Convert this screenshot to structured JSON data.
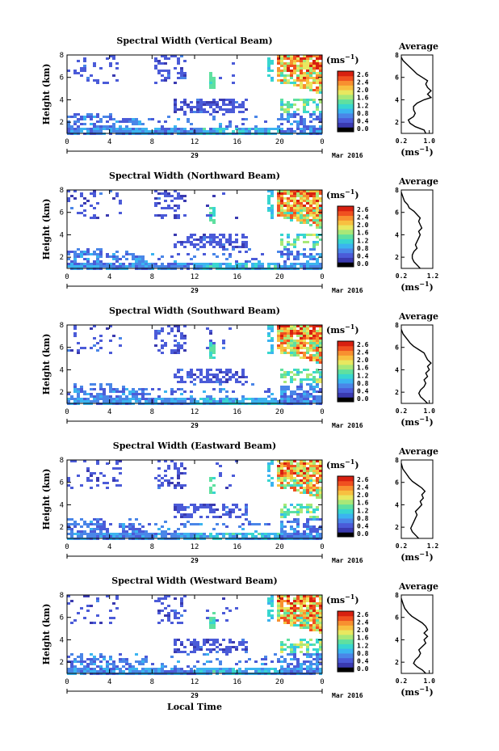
{
  "figure": {
    "xlabel": "Local Time",
    "day_label": "29",
    "month_label": "Mar 2016",
    "unit_label": "(ms",
    "unit_exp": "−1",
    "unit_close": ")",
    "avg_title": "Average"
  },
  "chart_data": [
    {
      "type": "heatmap",
      "title": "Spectral Width (Vertical Beam)",
      "ylabel": "Height (km)",
      "xlim": [
        0,
        24
      ],
      "ylim": [
        1,
        8
      ],
      "x_ticks": [
        "0",
        "4",
        "8",
        "12",
        "16",
        "20",
        "0"
      ],
      "y_ticks": [
        "2",
        "4",
        "6",
        "8"
      ],
      "colorbar": {
        "ticks": [
          "2.6",
          "2.4",
          "2.0",
          "1.6",
          "1.2",
          "0.8",
          "0.4",
          "0.0"
        ],
        "range": [
          0.0,
          2.8
        ]
      },
      "avg_profile": {
        "xlim": [
          0.2,
          1.1
        ],
        "x_ticks": [
          "0.2",
          "1.0"
        ],
        "y_ticks": [
          "2",
          "4",
          "6",
          "8"
        ],
        "points": [
          [
            0.9,
            1.0
          ],
          [
            0.85,
            1.3
          ],
          [
            0.6,
            1.6
          ],
          [
            0.45,
            1.9
          ],
          [
            0.4,
            2.2
          ],
          [
            0.55,
            2.5
          ],
          [
            0.6,
            2.8
          ],
          [
            0.55,
            3.1
          ],
          [
            0.55,
            3.4
          ],
          [
            0.65,
            3.7
          ],
          [
            0.85,
            4.0
          ],
          [
            1.05,
            4.2
          ],
          [
            0.95,
            4.5
          ],
          [
            1.05,
            4.8
          ],
          [
            0.95,
            5.1
          ],
          [
            0.9,
            5.4
          ],
          [
            0.95,
            5.7
          ],
          [
            0.8,
            6.0
          ],
          [
            0.65,
            6.3
          ],
          [
            0.55,
            6.6
          ],
          [
            0.45,
            6.9
          ],
          [
            0.35,
            7.2
          ],
          [
            0.25,
            7.5
          ],
          [
            0.2,
            7.8
          ]
        ]
      }
    },
    {
      "type": "heatmap",
      "title": "Spectral Width (Northward Beam)",
      "ylabel": "Height (km)",
      "xlim": [
        0,
        24
      ],
      "ylim": [
        1,
        8
      ],
      "x_ticks": [
        "0",
        "4",
        "8",
        "12",
        "16",
        "20",
        "0"
      ],
      "y_ticks": [
        "2",
        "4",
        "6",
        "8"
      ],
      "colorbar": {
        "ticks": [
          "2.6",
          "2.4",
          "2.0",
          "1.6",
          "1.2",
          "0.8",
          "0.4",
          "0.0"
        ],
        "range": [
          0.0,
          2.8
        ]
      },
      "avg_profile": {
        "xlim": [
          0.2,
          1.2
        ],
        "x_ticks": [
          "0.2",
          "1.2"
        ],
        "y_ticks": [
          "2",
          "4",
          "6",
          "8"
        ],
        "points": [
          [
            0.8,
            1.0
          ],
          [
            0.7,
            1.3
          ],
          [
            0.6,
            1.6
          ],
          [
            0.55,
            1.9
          ],
          [
            0.55,
            2.2
          ],
          [
            0.6,
            2.5
          ],
          [
            0.7,
            2.8
          ],
          [
            0.65,
            3.1
          ],
          [
            0.7,
            3.4
          ],
          [
            0.75,
            3.7
          ],
          [
            0.8,
            4.0
          ],
          [
            0.75,
            4.3
          ],
          [
            0.85,
            4.6
          ],
          [
            0.8,
            4.9
          ],
          [
            0.75,
            5.2
          ],
          [
            0.8,
            5.5
          ],
          [
            0.7,
            5.8
          ],
          [
            0.6,
            6.1
          ],
          [
            0.45,
            6.4
          ],
          [
            0.4,
            6.7
          ],
          [
            0.3,
            7.0
          ],
          [
            0.25,
            7.4
          ],
          [
            0.2,
            7.8
          ]
        ]
      }
    },
    {
      "type": "heatmap",
      "title": "Spectral Width (Southward Beam)",
      "ylabel": "Height (km)",
      "xlim": [
        0,
        24
      ],
      "ylim": [
        1,
        8
      ],
      "x_ticks": [
        "0",
        "4",
        "8",
        "12",
        "16",
        "20",
        "0"
      ],
      "y_ticks": [
        "2",
        "4",
        "6",
        "8"
      ],
      "colorbar": {
        "ticks": [
          "2.6",
          "2.4",
          "2.0",
          "1.6",
          "1.2",
          "0.8",
          "0.4",
          "0.0"
        ],
        "range": [
          0.0,
          2.8
        ]
      },
      "avg_profile": {
        "xlim": [
          0.2,
          1.1
        ],
        "x_ticks": [
          "0.2",
          "1.0"
        ],
        "y_ticks": [
          "2",
          "4",
          "6",
          "8"
        ],
        "points": [
          [
            0.95,
            1.0
          ],
          [
            0.85,
            1.3
          ],
          [
            0.75,
            1.6
          ],
          [
            0.7,
            1.9
          ],
          [
            0.75,
            2.2
          ],
          [
            0.85,
            2.5
          ],
          [
            0.9,
            2.8
          ],
          [
            0.85,
            3.1
          ],
          [
            0.95,
            3.4
          ],
          [
            0.9,
            3.7
          ],
          [
            1.0,
            4.0
          ],
          [
            0.95,
            4.3
          ],
          [
            1.05,
            4.6
          ],
          [
            0.95,
            4.9
          ],
          [
            0.9,
            5.2
          ],
          [
            0.85,
            5.5
          ],
          [
            0.7,
            5.8
          ],
          [
            0.55,
            6.1
          ],
          [
            0.45,
            6.4
          ],
          [
            0.35,
            6.8
          ],
          [
            0.25,
            7.2
          ],
          [
            0.2,
            7.6
          ]
        ]
      }
    },
    {
      "type": "heatmap",
      "title": "Spectral Width (Eastward Beam)",
      "ylabel": "Height (km)",
      "xlim": [
        0,
        24
      ],
      "ylim": [
        1,
        8
      ],
      "x_ticks": [
        "0",
        "4",
        "8",
        "12",
        "16",
        "20",
        "0"
      ],
      "y_ticks": [
        "2",
        "4",
        "6",
        "8"
      ],
      "colorbar": {
        "ticks": [
          "2.6",
          "2.4",
          "2.0",
          "1.6",
          "1.2",
          "0.8",
          "0.4",
          "0.0"
        ],
        "range": [
          0.0,
          2.8
        ]
      },
      "avg_profile": {
        "xlim": [
          0.2,
          1.2
        ],
        "x_ticks": [
          "0.2",
          "1.2"
        ],
        "y_ticks": [
          "2",
          "4",
          "6",
          "8"
        ],
        "points": [
          [
            0.75,
            1.0
          ],
          [
            0.65,
            1.3
          ],
          [
            0.55,
            1.6
          ],
          [
            0.5,
            1.9
          ],
          [
            0.55,
            2.2
          ],
          [
            0.6,
            2.5
          ],
          [
            0.65,
            2.8
          ],
          [
            0.7,
            3.1
          ],
          [
            0.65,
            3.4
          ],
          [
            0.75,
            3.7
          ],
          [
            0.85,
            4.0
          ],
          [
            0.8,
            4.3
          ],
          [
            0.9,
            4.6
          ],
          [
            0.85,
            4.9
          ],
          [
            0.95,
            5.2
          ],
          [
            0.85,
            5.5
          ],
          [
            0.7,
            5.8
          ],
          [
            0.55,
            6.1
          ],
          [
            0.45,
            6.4
          ],
          [
            0.35,
            6.8
          ],
          [
            0.25,
            7.2
          ],
          [
            0.2,
            7.7
          ]
        ]
      }
    },
    {
      "type": "heatmap",
      "title": "Spectral Width (Westward Beam)",
      "ylabel": "Height (km)",
      "xlim": [
        0,
        24
      ],
      "ylim": [
        1,
        8
      ],
      "x_ticks": [
        "0",
        "4",
        "8",
        "12",
        "16",
        "20",
        "0"
      ],
      "y_ticks": [
        "2",
        "4",
        "6",
        "8"
      ],
      "colorbar": {
        "ticks": [
          "2.6",
          "2.4",
          "2.0",
          "1.6",
          "1.2",
          "0.8",
          "0.4",
          "0.0"
        ],
        "range": [
          0.0,
          2.8
        ]
      },
      "avg_profile": {
        "xlim": [
          0.2,
          1.1
        ],
        "x_ticks": [
          "0.2",
          "1.0"
        ],
        "y_ticks": [
          "2",
          "4",
          "6",
          "8"
        ],
        "points": [
          [
            0.9,
            1.0
          ],
          [
            0.8,
            1.3
          ],
          [
            0.65,
            1.6
          ],
          [
            0.55,
            1.9
          ],
          [
            0.6,
            2.2
          ],
          [
            0.7,
            2.5
          ],
          [
            0.75,
            2.8
          ],
          [
            0.7,
            3.1
          ],
          [
            0.8,
            3.4
          ],
          [
            0.9,
            3.7
          ],
          [
            0.85,
            4.0
          ],
          [
            0.95,
            4.3
          ],
          [
            0.85,
            4.6
          ],
          [
            0.95,
            4.9
          ],
          [
            0.9,
            5.2
          ],
          [
            0.8,
            5.5
          ],
          [
            0.65,
            5.8
          ],
          [
            0.5,
            6.1
          ],
          [
            0.4,
            6.4
          ],
          [
            0.3,
            6.8
          ],
          [
            0.25,
            7.2
          ],
          [
            0.2,
            7.7
          ]
        ]
      }
    }
  ],
  "colors": {
    "colormap": [
      "#000000",
      "#3a3ab0",
      "#4b5bd8",
      "#4a86e8",
      "#3bb4f0",
      "#38d6d0",
      "#5fe0a0",
      "#a8e878",
      "#e8e860",
      "#f8c040",
      "#f89030",
      "#f05020",
      "#d82010"
    ]
  }
}
